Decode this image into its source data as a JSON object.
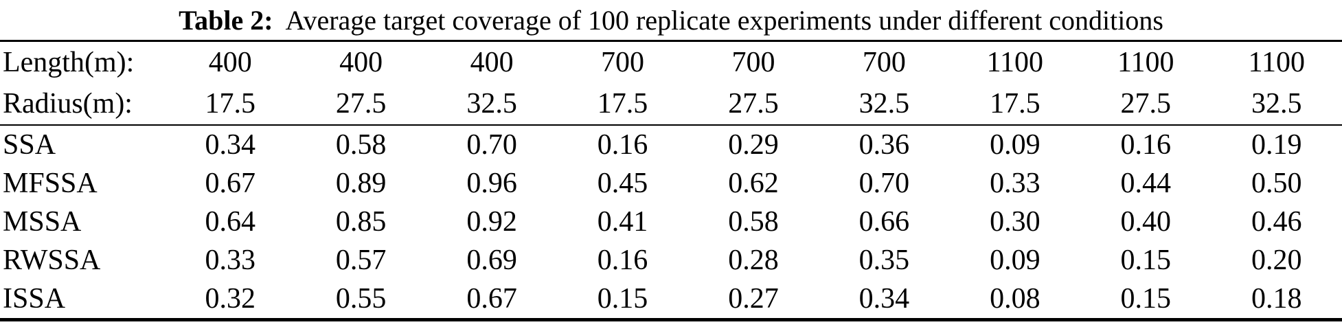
{
  "title": {
    "label": "Table 2:",
    "text": "Average target coverage of 100 replicate experiments under different conditions"
  },
  "table": {
    "header_rows": [
      {
        "label": "Length(m):",
        "values": [
          "400",
          "400",
          "400",
          "700",
          "700",
          "700",
          "1100",
          "1100",
          "1100"
        ]
      },
      {
        "label": "Radius(m):",
        "values": [
          "17.5",
          "27.5",
          "32.5",
          "17.5",
          "27.5",
          "32.5",
          "17.5",
          "27.5",
          "32.5"
        ]
      }
    ],
    "body_rows": [
      {
        "label": "SSA",
        "values": [
          "0.34",
          "0.58",
          "0.70",
          "0.16",
          "0.29",
          "0.36",
          "0.09",
          "0.16",
          "0.19"
        ]
      },
      {
        "label": "MFSSA",
        "values": [
          "0.67",
          "0.89",
          "0.96",
          "0.45",
          "0.62",
          "0.70",
          "0.33",
          "0.44",
          "0.50"
        ]
      },
      {
        "label": "MSSA",
        "values": [
          "0.64",
          "0.85",
          "0.92",
          "0.41",
          "0.58",
          "0.66",
          "0.30",
          "0.40",
          "0.46"
        ]
      },
      {
        "label": "RWSSA",
        "values": [
          "0.33",
          "0.57",
          "0.69",
          "0.16",
          "0.28",
          "0.35",
          "0.09",
          "0.15",
          "0.20"
        ]
      },
      {
        "label": "ISSA",
        "values": [
          "0.32",
          "0.55",
          "0.67",
          "0.15",
          "0.27",
          "0.34",
          "0.08",
          "0.15",
          "0.18"
        ]
      }
    ]
  },
  "colors": {
    "text": "#000000",
    "background": "#ffffff",
    "rule": "#000000"
  }
}
